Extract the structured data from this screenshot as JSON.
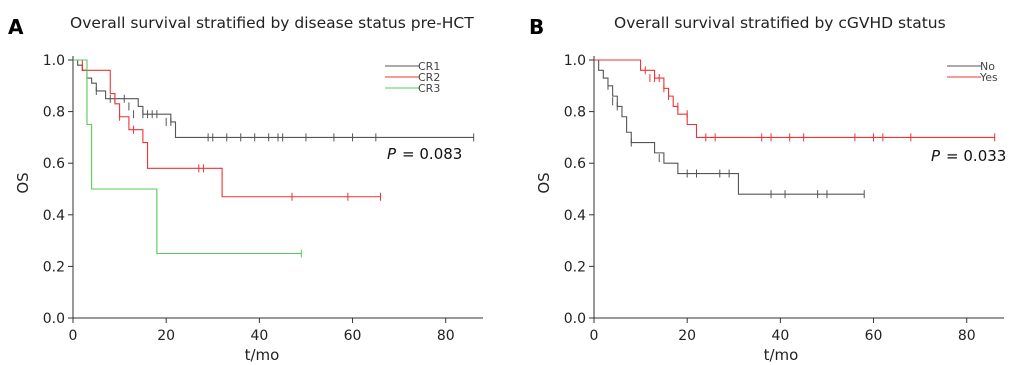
{
  "figure": {
    "panels": [
      {
        "letter": "A",
        "title": "Overall survival stratified by disease status pre-HCT",
        "p_value": "= 0.083",
        "p_symbol": "P"
      },
      {
        "letter": "B",
        "title": "Overall survival stratified by cGVHD status",
        "p_value": "= 0.033",
        "p_symbol": "P"
      }
    ]
  },
  "chart_data": [
    {
      "type": "line",
      "step": true,
      "title": "Overall survival stratified by disease status pre-HCT",
      "xlabel": "t/mo",
      "ylabel": "OS",
      "xlim": [
        0,
        88
      ],
      "ylim": [
        0,
        1
      ],
      "x_ticks": [
        0,
        20,
        40,
        60,
        80
      ],
      "y_ticks": [
        "0.0",
        "0.2",
        "0.4",
        "0.6",
        "0.8",
        "1.0"
      ],
      "grid": false,
      "legend_position": "top-right",
      "annotation": "P = 0.083",
      "series": [
        {
          "name": "CR1",
          "color": "#555555",
          "steps": [
            [
              0,
              1.0
            ],
            [
              1,
              0.98
            ],
            [
              2,
              0.96
            ],
            [
              3,
              0.93
            ],
            [
              4,
              0.91
            ],
            [
              5,
              0.88
            ],
            [
              7,
              0.85
            ],
            [
              14,
              0.82
            ],
            [
              15,
              0.79
            ],
            [
              21,
              0.76
            ],
            [
              22,
              0.7
            ],
            [
              86,
              0.7
            ]
          ],
          "censors": [
            [
              3,
              0.93
            ],
            [
              5,
              0.88
            ],
            [
              8,
              0.85
            ],
            [
              9,
              0.85
            ],
            [
              11,
              0.85
            ],
            [
              12,
              0.82
            ],
            [
              13,
              0.79
            ],
            [
              15,
              0.79
            ],
            [
              16,
              0.79
            ],
            [
              17,
              0.79
            ],
            [
              18,
              0.79
            ],
            [
              20,
              0.76
            ],
            [
              21,
              0.76
            ],
            [
              29,
              0.7
            ],
            [
              30,
              0.7
            ],
            [
              33,
              0.7
            ],
            [
              36,
              0.7
            ],
            [
              39,
              0.7
            ],
            [
              42,
              0.7
            ],
            [
              44,
              0.7
            ],
            [
              45,
              0.7
            ],
            [
              50,
              0.7
            ],
            [
              56,
              0.7
            ],
            [
              60,
              0.7
            ],
            [
              65,
              0.7
            ],
            [
              86,
              0.7
            ]
          ]
        },
        {
          "name": "CR2",
          "color": "#ee3333",
          "steps": [
            [
              0,
              1.0
            ],
            [
              2,
              0.96
            ],
            [
              8,
              0.87
            ],
            [
              9,
              0.83
            ],
            [
              10,
              0.78
            ],
            [
              12,
              0.73
            ],
            [
              15,
              0.68
            ],
            [
              16,
              0.58
            ],
            [
              32,
              0.47
            ],
            [
              66,
              0.47
            ]
          ],
          "censors": [
            [
              10,
              0.78
            ],
            [
              13,
              0.73
            ],
            [
              27,
              0.58
            ],
            [
              28,
              0.58
            ],
            [
              47,
              0.47
            ],
            [
              59,
              0.47
            ],
            [
              66,
              0.47
            ]
          ]
        },
        {
          "name": "CR3",
          "color": "#55cc55",
          "steps": [
            [
              0,
              1.0
            ],
            [
              3,
              0.75
            ],
            [
              4,
              0.5
            ],
            [
              18,
              0.25
            ],
            [
              49,
              0.25
            ]
          ],
          "censors": [
            [
              49,
              0.25
            ]
          ]
        }
      ]
    },
    {
      "type": "line",
      "step": true,
      "title": "Overall survival stratified by cGVHD status",
      "xlabel": "t/mo",
      "ylabel": "OS",
      "xlim": [
        0,
        88
      ],
      "ylim": [
        0,
        1
      ],
      "x_ticks": [
        0,
        20,
        40,
        60,
        80
      ],
      "y_ticks": [
        "0.0",
        "0.2",
        "0.4",
        "0.6",
        "0.8",
        "1.0"
      ],
      "grid": false,
      "legend_position": "top-right",
      "annotation": "P = 0.033",
      "series": [
        {
          "name": "No",
          "color": "#555555",
          "steps": [
            [
              0,
              1.0
            ],
            [
              1,
              0.96
            ],
            [
              2,
              0.93
            ],
            [
              3,
              0.9
            ],
            [
              4,
              0.86
            ],
            [
              5,
              0.82
            ],
            [
              6,
              0.78
            ],
            [
              7,
              0.72
            ],
            [
              8,
              0.68
            ],
            [
              13,
              0.64
            ],
            [
              15,
              0.6
            ],
            [
              18,
              0.56
            ],
            [
              31,
              0.48
            ],
            [
              58,
              0.48
            ]
          ],
          "censors": [
            [
              3,
              0.9
            ],
            [
              4,
              0.84
            ],
            [
              5,
              0.82
            ],
            [
              8,
              0.68
            ],
            [
              14,
              0.62
            ],
            [
              20,
              0.56
            ],
            [
              22,
              0.56
            ],
            [
              27,
              0.56
            ],
            [
              29,
              0.56
            ],
            [
              38,
              0.48
            ],
            [
              41,
              0.48
            ],
            [
              48,
              0.48
            ],
            [
              50,
              0.48
            ],
            [
              58,
              0.48
            ]
          ]
        },
        {
          "name": "Yes",
          "color": "#ee3333",
          "steps": [
            [
              0,
              1.0
            ],
            [
              10,
              0.96
            ],
            [
              13,
              0.93
            ],
            [
              15,
              0.89
            ],
            [
              16,
              0.86
            ],
            [
              17,
              0.82
            ],
            [
              18,
              0.79
            ],
            [
              20,
              0.75
            ],
            [
              22,
              0.7
            ],
            [
              86,
              0.7
            ]
          ],
          "censors": [
            [
              11,
              0.96
            ],
            [
              12,
              0.93
            ],
            [
              13,
              0.93
            ],
            [
              14,
              0.93
            ],
            [
              15,
              0.89
            ],
            [
              16,
              0.86
            ],
            [
              18,
              0.82
            ],
            [
              20,
              0.79
            ],
            [
              24,
              0.7
            ],
            [
              26,
              0.7
            ],
            [
              36,
              0.7
            ],
            [
              38,
              0.7
            ],
            [
              42,
              0.7
            ],
            [
              45,
              0.7
            ],
            [
              56,
              0.7
            ],
            [
              60,
              0.7
            ],
            [
              62,
              0.7
            ],
            [
              68,
              0.7
            ],
            [
              86,
              0.7
            ]
          ]
        }
      ]
    }
  ]
}
